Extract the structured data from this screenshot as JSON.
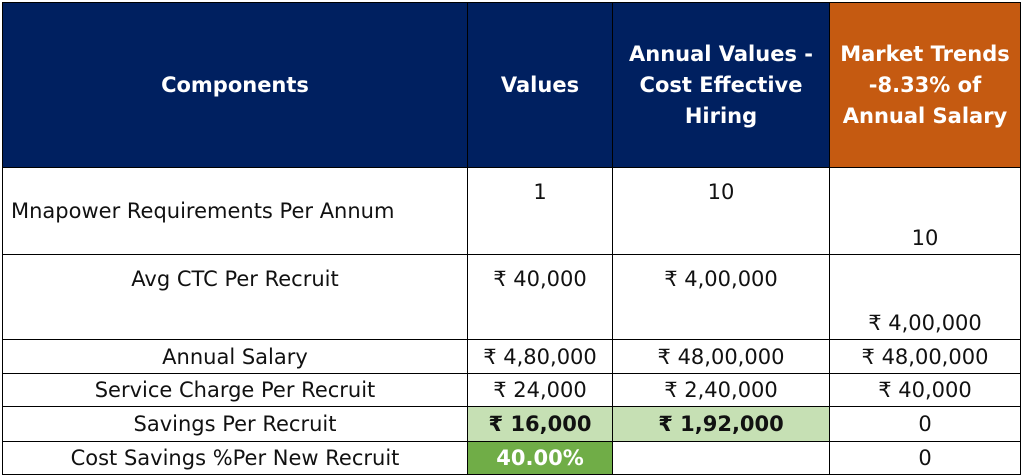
{
  "table": {
    "headers": {
      "components": "Components",
      "values": "Values",
      "annual": "Annual Values - Cost Effective Hiring",
      "market": "Market Trends -8.33% of Annual Salary"
    },
    "rows": [
      {
        "component": "Mnapower Requirements Per   Annum",
        "values": "1",
        "annual": "10",
        "market": "10"
      },
      {
        "component": "Avg CTC Per  Recruit",
        "values": "₹ 40,000",
        "annual": "₹ 4,00,000",
        "market": "₹ 4,00,000"
      },
      {
        "component": "Annual Salary",
        "values": "₹ 4,80,000",
        "annual": "₹ 48,00,000",
        "market": "₹ 48,00,000"
      },
      {
        "component": "Service Charge Per Recruit",
        "values": "₹ 24,000",
        "annual": "₹ 2,40,000",
        "market": "₹ 40,000"
      },
      {
        "component": "Savings Per Recruit",
        "values": "₹ 16,000",
        "annual": "₹ 1,92,000",
        "market": "0"
      },
      {
        "component": "Cost Savings %Per New Recruit",
        "values": "40.00%",
        "annual": "",
        "market": "0"
      }
    ]
  },
  "colors": {
    "header_navy": "#002060",
    "header_orange": "#c55a11",
    "highlight_light_green": "#c6e0b4",
    "highlight_green": "#70ad47"
  }
}
